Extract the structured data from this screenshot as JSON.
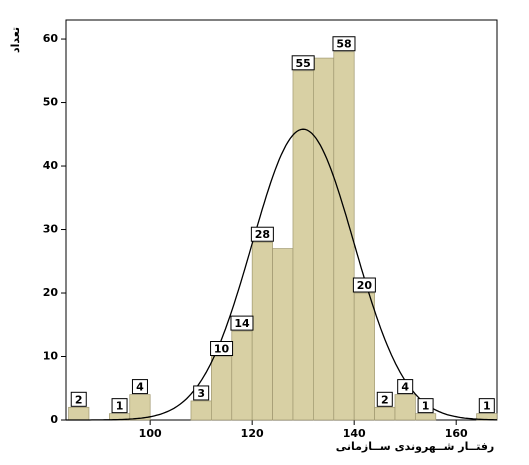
{
  "chart_data": {
    "type": "histogram",
    "x_label": "رفتــار شــهروندی ســازمانی",
    "y_label": "تعداد",
    "bins": [
      84,
      88,
      92,
      96,
      100,
      104,
      108,
      112,
      116,
      120,
      124,
      128,
      132,
      136,
      140,
      144,
      148,
      152,
      156,
      160,
      164,
      168
    ],
    "values": [
      2,
      0,
      1,
      4,
      0,
      0,
      3,
      10,
      14,
      28,
      27,
      55,
      57,
      58,
      20,
      2,
      4,
      1,
      0,
      0,
      1
    ],
    "value_labels": [
      "2",
      null,
      "1",
      "4",
      null,
      null,
      "3",
      "10",
      "14",
      "28",
      null,
      "55",
      null,
      "58",
      "20",
      "2",
      "4",
      "1",
      null,
      null,
      "1"
    ],
    "color": "#d8d0a4",
    "normal_curve": {
      "mean": 130,
      "sd": 10
    },
    "xlim": [
      83.5,
      168
    ],
    "xticks": [
      100,
      120,
      140,
      160
    ],
    "ylim": [
      0,
      63
    ],
    "yticks": [
      0,
      10,
      20,
      30,
      40,
      50,
      60
    ]
  }
}
